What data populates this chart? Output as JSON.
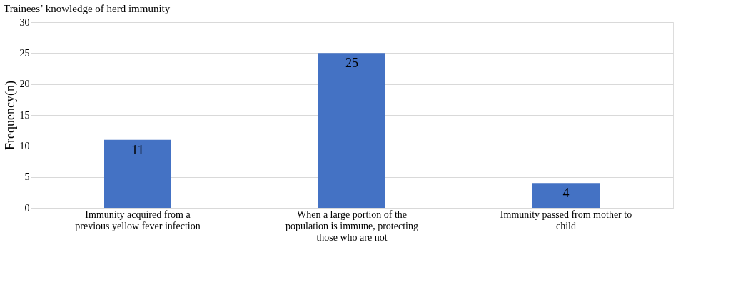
{
  "chart_data": {
    "type": "bar",
    "title": "Trainees’ knowledge of herd immunity",
    "ylabel": "Frequency(n)",
    "categories": [
      "Immunity acquired from a previous yellow fever infection",
      "When a large portion of the population is immune, protecting those who are not",
      "Immunity passed from mother to child"
    ],
    "series": [
      {
        "color": "#4472c4",
        "values": [
          11,
          25,
          4
        ]
      }
    ],
    "ylim": [
      0,
      30
    ],
    "yticks": [
      0,
      5,
      10,
      15,
      20,
      25,
      30
    ],
    "grid": "y",
    "data_labels": true
  }
}
